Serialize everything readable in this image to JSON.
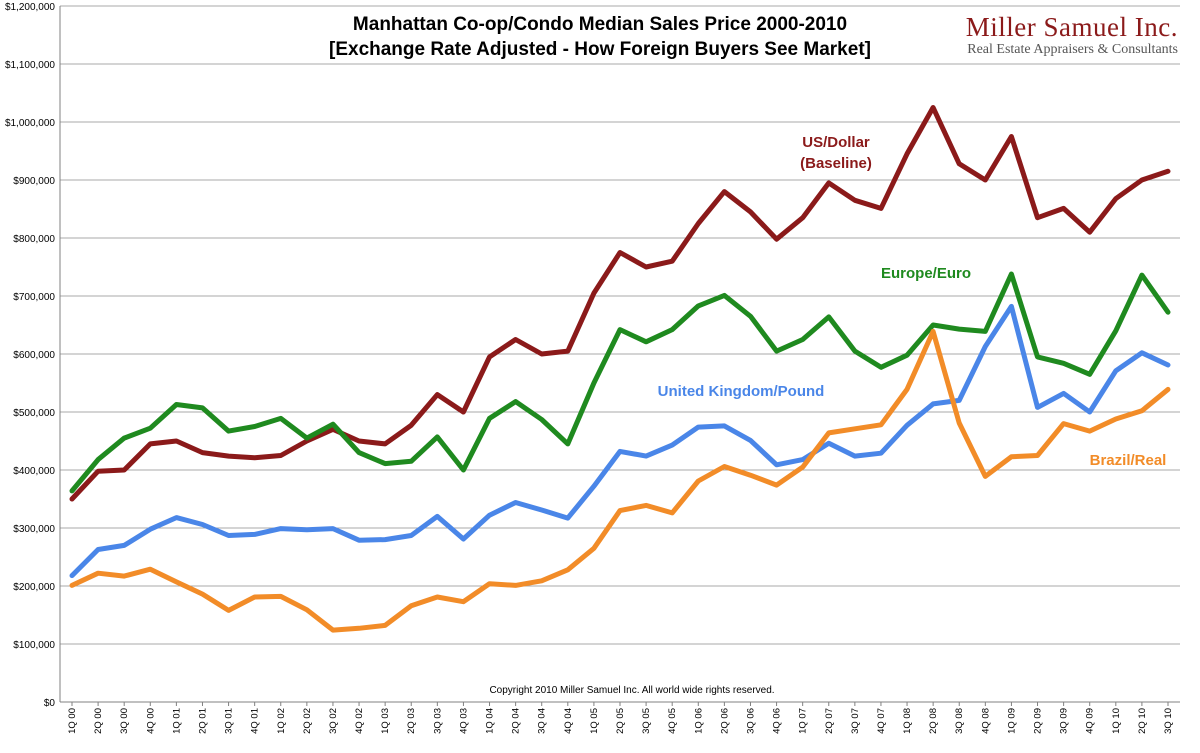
{
  "chart_data": {
    "type": "line",
    "title": "Manhattan Co-op/Condo Median Sales Price 2000-2010",
    "subtitle": "[Exchange Rate Adjusted - How Foreign Buyers See Market]",
    "xlabel": "",
    "ylabel": "",
    "ylim": [
      0,
      1200000
    ],
    "y_ticks": [
      "$0",
      "$100,000",
      "$200,000",
      "$300,000",
      "$400,000",
      "$500,000",
      "$600,000",
      "$700,000",
      "$800,000",
      "$900,000",
      "$1,000,000",
      "$1,100,000",
      "$1,200,000"
    ],
    "y_tick_values": [
      0,
      100000,
      200000,
      300000,
      400000,
      500000,
      600000,
      700000,
      800000,
      900000,
      1000000,
      1100000,
      1200000
    ],
    "grid": true,
    "legend": "inline labels",
    "categories": [
      "1Q 00",
      "2Q 00",
      "3Q 00",
      "4Q 00",
      "1Q 01",
      "2Q 01",
      "3Q 01",
      "4Q 01",
      "1Q 02",
      "2Q 02",
      "3Q 02",
      "4Q 02",
      "1Q 03",
      "2Q 03",
      "3Q 03",
      "4Q 03",
      "1Q 04",
      "2Q 04",
      "3Q 04",
      "4Q 04",
      "1Q 05",
      "2Q 05",
      "3Q 05",
      "4Q 05",
      "1Q 06",
      "2Q 06",
      "3Q 06",
      "4Q 06",
      "1Q 07",
      "2Q 07",
      "3Q 07",
      "4Q 07",
      "1Q 08",
      "2Q 08",
      "3Q 08",
      "4Q 08",
      "1Q 09",
      "2Q 09",
      "3Q 09",
      "4Q 09",
      "1Q 10",
      "2Q 10",
      "3Q 10"
    ],
    "series": [
      {
        "name": "US/Dollar (Baseline)",
        "label_lines": [
          "US/Dollar",
          "(Baseline)"
        ],
        "color": "#8b1a1a",
        "values": [
          350000,
          398000,
          400000,
          445000,
          450000,
          430000,
          424000,
          421000,
          425000,
          450000,
          470000,
          450000,
          445000,
          477000,
          530000,
          500000,
          595000,
          625000,
          600000,
          605000,
          705000,
          775000,
          750000,
          760000,
          825000,
          880000,
          845000,
          798000,
          835000,
          895000,
          865000,
          851000,
          945000,
          1025000,
          928000,
          900000,
          975000,
          835000,
          851000,
          810000,
          868000,
          900000,
          915000
        ]
      },
      {
        "name": "Europe/Euro",
        "label_lines": [
          "Europe/Euro"
        ],
        "color": "#1f8a1f",
        "values": [
          364000,
          418000,
          455000,
          472000,
          513000,
          507000,
          467000,
          475000,
          489000,
          455000,
          479000,
          430000,
          411000,
          415000,
          457000,
          400000,
          489000,
          518000,
          487000,
          445000,
          550000,
          642000,
          621000,
          642000,
          683000,
          701000,
          665000,
          605000,
          625000,
          664000,
          605000,
          577000,
          598000,
          650000,
          643000,
          639000,
          738000,
          595000,
          584000,
          565000,
          640000,
          736000,
          672000
        ]
      },
      {
        "name": "United Kingdom/Pound",
        "label_lines": [
          "United Kingdom/Pound"
        ],
        "color": "#4a86e8",
        "values": [
          218000,
          263000,
          270000,
          298000,
          318000,
          306000,
          287000,
          289000,
          299000,
          297000,
          299000,
          279000,
          280000,
          287000,
          320000,
          281000,
          322000,
          344000,
          331000,
          317000,
          372000,
          432000,
          424000,
          443000,
          474000,
          476000,
          451000,
          409000,
          418000,
          446000,
          424000,
          429000,
          477000,
          514000,
          520000,
          613000,
          682000,
          508000,
          532000,
          500000,
          571000,
          602000,
          581000
        ]
      },
      {
        "name": "Brazil/Real",
        "label_lines": [
          "Brazil/Real"
        ],
        "color": "#f28c28",
        "values": [
          201000,
          222000,
          217000,
          229000,
          207000,
          186000,
          158000,
          181000,
          182000,
          159000,
          124000,
          127000,
          132000,
          166000,
          181000,
          173000,
          204000,
          201000,
          209000,
          228000,
          265000,
          330000,
          339000,
          326000,
          381000,
          406000,
          391000,
          374000,
          405000,
          464000,
          471000,
          478000,
          539000,
          639000,
          481000,
          389000,
          423000,
          425000,
          480000,
          467000,
          488000,
          502000,
          539000
        ]
      }
    ],
    "annotations": [
      "Copyright 2010 Miller Samuel Inc.  All world wide rights reserved."
    ]
  },
  "brand": {
    "name": "Miller Samuel Inc.",
    "tagline": "Real Estate Appraisers & Consultants"
  }
}
